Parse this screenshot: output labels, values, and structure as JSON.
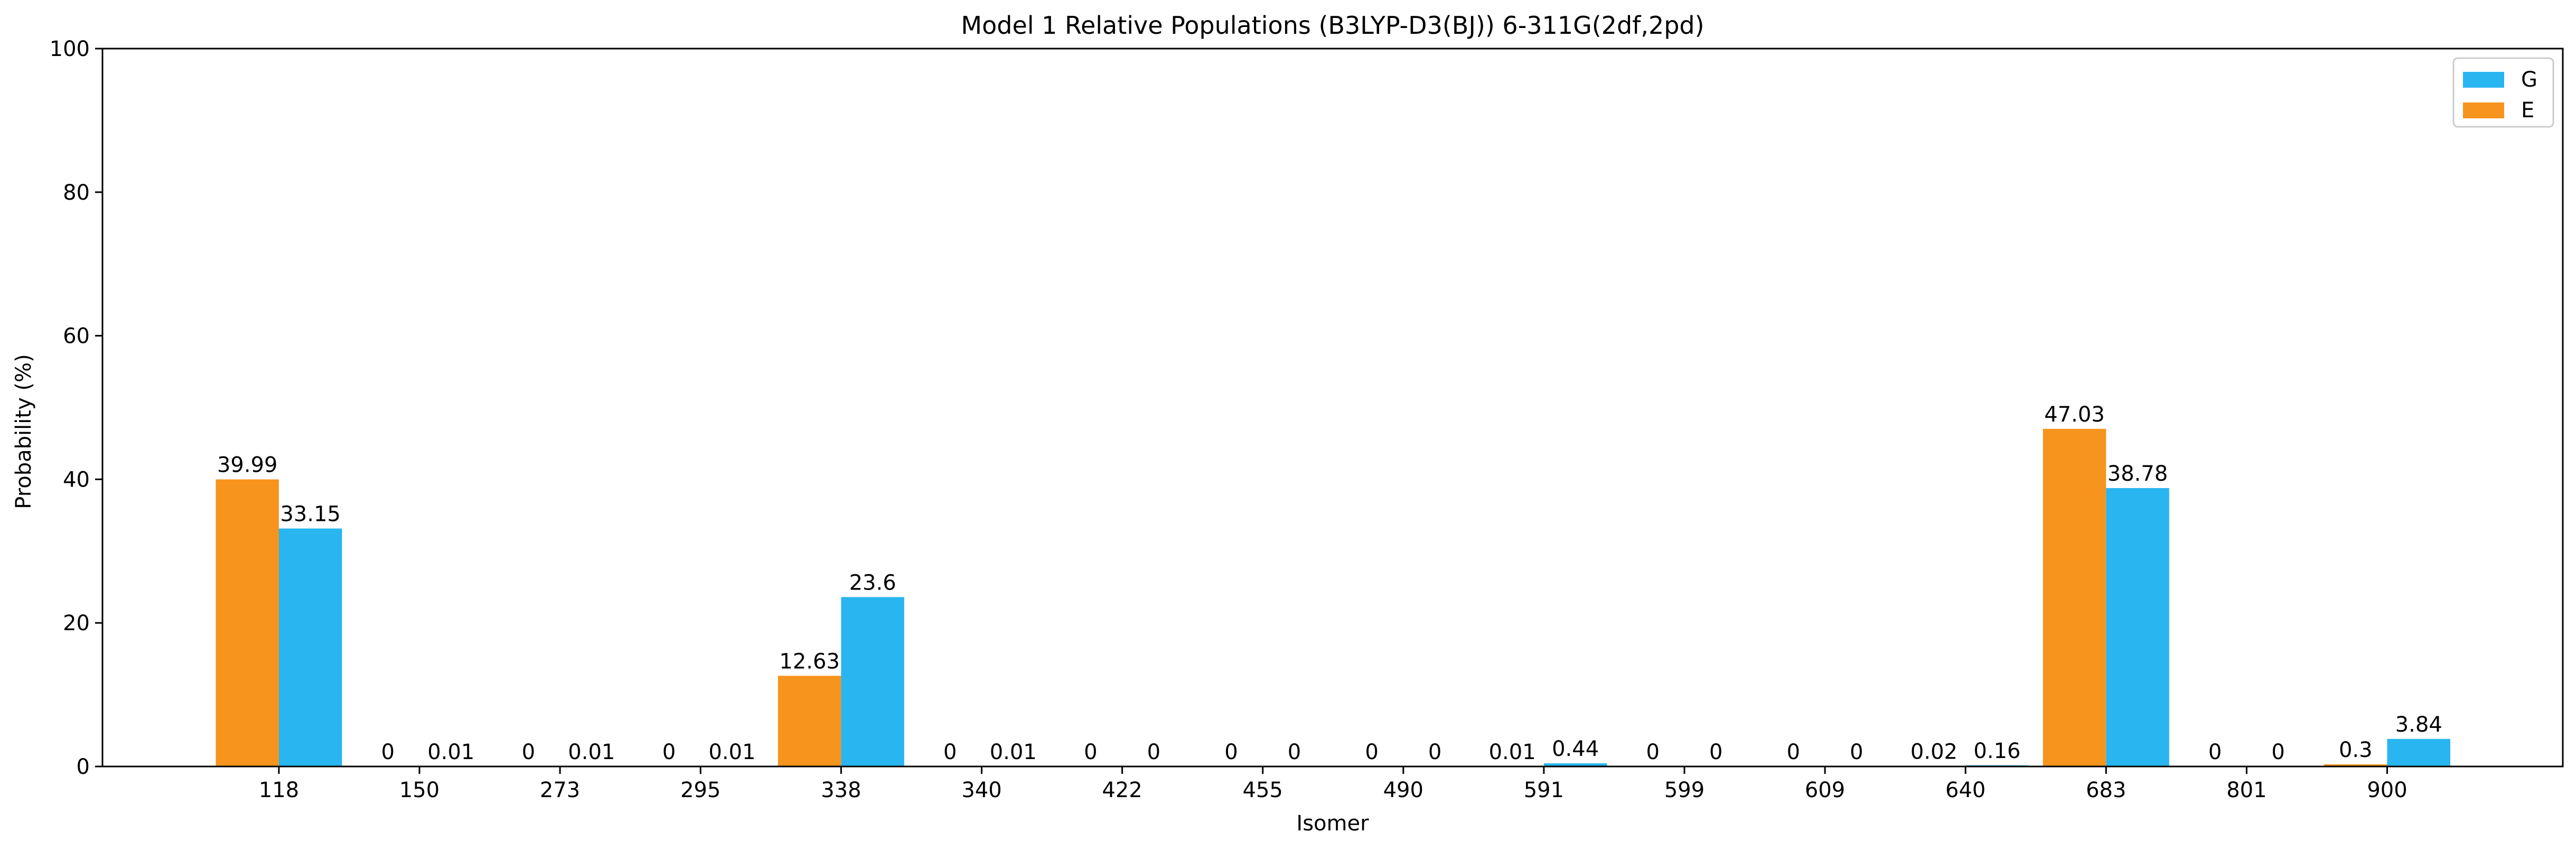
{
  "chart_data": {
    "type": "bar",
    "title": "Model 1 Relative Populations (B3LYP-D3(BJ)) 6-311G(2df,2pd)",
    "xlabel": "Isomer",
    "ylabel": "Probability (%)",
    "ylim": [
      0,
      100
    ],
    "yticks": [
      "0",
      "20",
      "40",
      "60",
      "80",
      "100"
    ],
    "categories": [
      "118",
      "150",
      "273",
      "295",
      "338",
      "340",
      "422",
      "455",
      "490",
      "591",
      "599",
      "609",
      "640",
      "683",
      "801",
      "900"
    ],
    "series": [
      {
        "name": "E",
        "color": "#F7941D",
        "values": [
          39.99,
          0,
          0,
          0,
          12.63,
          0,
          0,
          0,
          0,
          0.01,
          0,
          0,
          0.02,
          47.03,
          0,
          0.3
        ],
        "labels": [
          "39.99",
          "0",
          "0",
          "0",
          "12.63",
          "0",
          "0",
          "0",
          "0",
          "0.01",
          "0",
          "0",
          "0.02",
          "47.03",
          "0",
          "0.3"
        ]
      },
      {
        "name": "G",
        "color": "#29B5F0",
        "values": [
          33.15,
          0.01,
          0.01,
          0.01,
          23.6,
          0.01,
          0,
          0,
          0,
          0.44,
          0,
          0,
          0.16,
          38.78,
          0,
          3.84
        ],
        "labels": [
          "33.15",
          "0.01",
          "0.01",
          "0.01",
          "23.6",
          "0.01",
          "0",
          "0",
          "0",
          "0.44",
          "0",
          "0",
          "0.16",
          "38.78",
          "0",
          "3.84"
        ]
      }
    ],
    "legend": {
      "position": "top-right",
      "order": [
        "G",
        "E"
      ]
    },
    "grid": false
  }
}
